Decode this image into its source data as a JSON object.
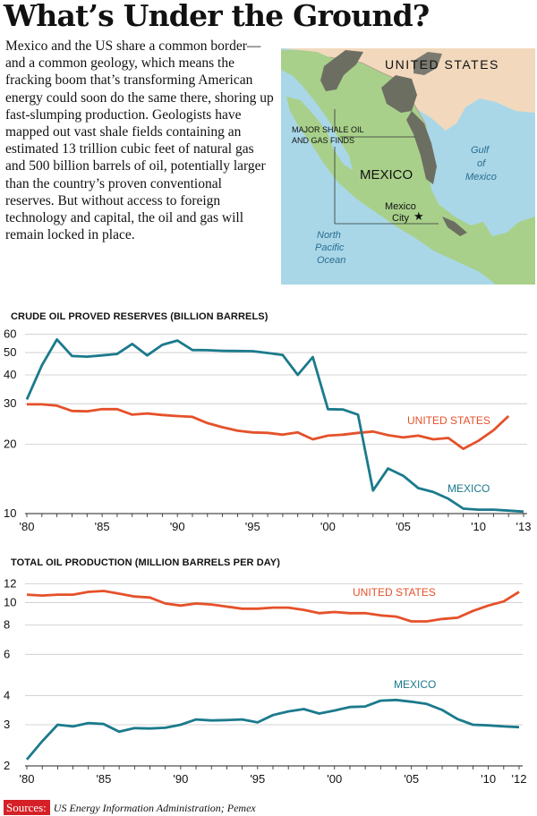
{
  "headline": "What’s Under the Ground?",
  "intro": "Mexico and the US share a common border—and a common geology, which means the fracking boom that’s transforming American energy could soon do the same there, shoring up fast-slumping production. Geologists have mapped out vast shale fields containing an estimated 13 trillion cubic feet of natural gas and 500 billion barrels of oil, potentially larger than the country’s proven conventional reserves. But without access to foreign technology and capital, the oil and gas will remain locked in place.",
  "map": {
    "country_label": "UNITED STATES",
    "mexico_label": "MEXICO",
    "shale_label_line1": "MAJOR SHALE OIL",
    "shale_label_line2": "AND GAS FINDS",
    "city_line1": "Mexico",
    "city_line2": "City",
    "gulf_line1": "Gulf",
    "gulf_line2": "of",
    "gulf_line3": "Mexico",
    "pacific_line1": "North",
    "pacific_line2": "Pacific",
    "pacific_line3": "Ocean",
    "colors": {
      "water": "#a9d7e8",
      "mexico": "#a8d08a",
      "us": "#f2d9bd",
      "shale": "#6d6e62"
    }
  },
  "source_label": "Sources:",
  "source_text": "US Energy Information Administration; Pemex",
  "chart_data": [
    {
      "type": "line",
      "title": "CRUDE OIL PROVED RESERVES (BILLION BARRELS)",
      "y_scale": "log",
      "ylim": [
        10,
        62
      ],
      "y_ticks": [
        10,
        20,
        30,
        40,
        50,
        60
      ],
      "xlim": [
        1980,
        2013
      ],
      "x_ticks": [
        1980,
        1985,
        1990,
        1995,
        2000,
        2005,
        2010,
        2013
      ],
      "x_tick_labels": [
        "'80",
        "'85",
        "'90",
        "'95",
        "'00",
        "'05",
        "'10",
        "'13"
      ],
      "grid": "horizontal",
      "series": [
        {
          "name": "UNITED STATES",
          "color": "#e5512a",
          "x": [
            1980,
            1981,
            1982,
            1983,
            1984,
            1985,
            1986,
            1987,
            1988,
            1989,
            1990,
            1991,
            1992,
            1993,
            1994,
            1995,
            1996,
            1997,
            1998,
            1999,
            2000,
            2001,
            2002,
            2003,
            2004,
            2005,
            2006,
            2007,
            2008,
            2009,
            2010,
            2011,
            2012
          ],
          "values": [
            29.8,
            29.8,
            29.4,
            27.9,
            27.8,
            28.4,
            28.4,
            26.9,
            27.2,
            26.8,
            26.5,
            26.3,
            24.7,
            23.7,
            22.9,
            22.5,
            22.4,
            22.0,
            22.5,
            21.0,
            21.8,
            22.0,
            22.4,
            22.7,
            21.9,
            21.4,
            21.8,
            21.0,
            21.3,
            19.1,
            20.7,
            23.0,
            26.5
          ]
        },
        {
          "name": "MEXICO",
          "color": "#1b7a8c",
          "x": [
            1980,
            1981,
            1982,
            1983,
            1984,
            1985,
            1986,
            1987,
            1988,
            1989,
            1990,
            1991,
            1992,
            1993,
            1994,
            1995,
            1996,
            1997,
            1998,
            1999,
            2000,
            2001,
            2002,
            2003,
            2004,
            2005,
            2006,
            2007,
            2008,
            2009,
            2010,
            2011,
            2012,
            2013
          ],
          "values": [
            31.3,
            44.0,
            57.0,
            48.3,
            48.0,
            48.6,
            49.3,
            54.5,
            48.6,
            54.0,
            56.4,
            51.3,
            51.2,
            50.9,
            50.8,
            50.7,
            49.8,
            48.8,
            40.0,
            47.8,
            28.4,
            28.3,
            26.9,
            12.6,
            15.7,
            14.6,
            12.9,
            12.4,
            11.6,
            10.5,
            10.4,
            10.4,
            10.3,
            10.2
          ]
        }
      ]
    },
    {
      "type": "line",
      "title": "TOTAL OIL PRODUCTION (MILLION BARRELS PER DAY)",
      "y_scale": "log",
      "ylim": [
        2,
        12.5
      ],
      "y_ticks": [
        2,
        3,
        4,
        6,
        8,
        10,
        12
      ],
      "xlim": [
        1980,
        2012
      ],
      "x_ticks": [
        1980,
        1985,
        1990,
        1995,
        2000,
        2005,
        2010,
        2012
      ],
      "x_tick_labels": [
        "'80",
        "'85",
        "'90",
        "'95",
        "'00",
        "'05",
        "'10",
        "'12"
      ],
      "grid": "horizontal",
      "series": [
        {
          "name": "UNITED STATES",
          "color": "#e5512a",
          "x": [
            1980,
            1981,
            1982,
            1983,
            1984,
            1985,
            1986,
            1987,
            1988,
            1989,
            1990,
            1991,
            1992,
            1993,
            1994,
            1995,
            1996,
            1997,
            1998,
            1999,
            2000,
            2001,
            2002,
            2003,
            2004,
            2005,
            2006,
            2007,
            2008,
            2009,
            2010,
            2011,
            2012
          ],
          "values": [
            10.8,
            10.7,
            10.8,
            10.8,
            11.1,
            11.2,
            10.9,
            10.6,
            10.5,
            9.9,
            9.7,
            9.9,
            9.8,
            9.6,
            9.4,
            9.4,
            9.5,
            9.5,
            9.3,
            9.0,
            9.1,
            9.0,
            9.0,
            8.8,
            8.7,
            8.3,
            8.3,
            8.5,
            8.6,
            9.2,
            9.7,
            10.1,
            11.1
          ]
        },
        {
          "name": "MEXICO",
          "color": "#1b7a8c",
          "x": [
            1980,
            1981,
            1982,
            1983,
            1984,
            1985,
            1986,
            1987,
            1988,
            1989,
            1990,
            1991,
            1992,
            1993,
            1994,
            1995,
            1996,
            1997,
            1998,
            1999,
            2000,
            2001,
            2002,
            2003,
            2004,
            2005,
            2006,
            2007,
            2008,
            2009,
            2010,
            2011,
            2012
          ],
          "values": [
            2.13,
            2.55,
            3.0,
            2.95,
            3.05,
            3.02,
            2.8,
            2.9,
            2.89,
            2.91,
            3.0,
            3.16,
            3.13,
            3.14,
            3.16,
            3.07,
            3.3,
            3.42,
            3.5,
            3.35,
            3.45,
            3.57,
            3.59,
            3.8,
            3.83,
            3.76,
            3.68,
            3.47,
            3.17,
            3.0,
            2.98,
            2.95,
            2.93
          ]
        }
      ]
    }
  ]
}
